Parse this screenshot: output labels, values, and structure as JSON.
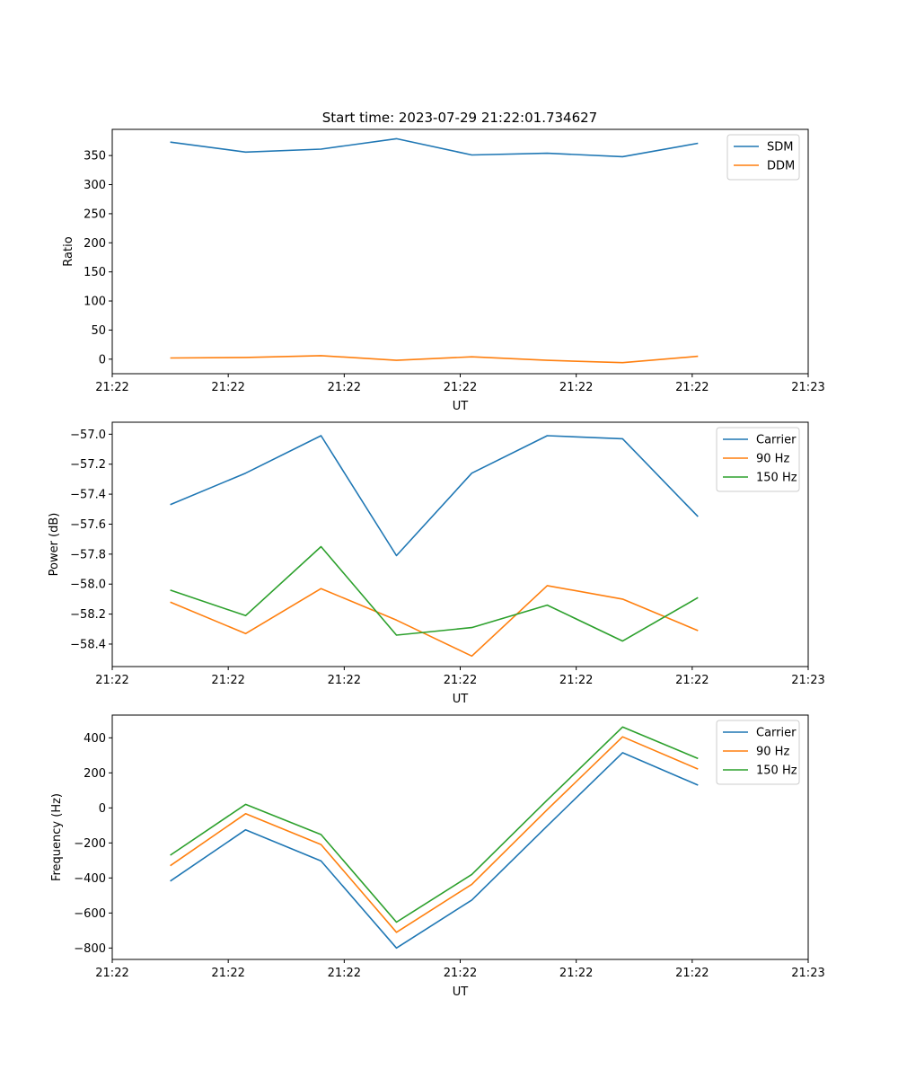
{
  "title": "Start time: 2023-07-29 21:22:01.734627",
  "colors": {
    "blue": "#1f77b4",
    "orange": "#ff7f0e",
    "green": "#2ca02c"
  },
  "chart_data": [
    {
      "type": "line",
      "xlabel": "UT",
      "ylabel": "Ratio",
      "x_tick_labels": [
        "21:22",
        "21:22",
        "21:22",
        "21:22",
        "21:22",
        "21:22",
        "21:23"
      ],
      "x": [
        0.5,
        1.15,
        1.8,
        2.45,
        3.1,
        3.75,
        4.4,
        5.05
      ],
      "xlim": [
        0,
        6
      ],
      "x_ticks": [
        0,
        1,
        2,
        3,
        4,
        5,
        6
      ],
      "ylim": [
        -25,
        395
      ],
      "y_ticks": [
        0,
        50,
        100,
        150,
        200,
        250,
        300,
        350
      ],
      "legend_position": "upper right",
      "series": [
        {
          "name": "SDM",
          "color": "#1f77b4",
          "values": [
            373,
            356,
            361,
            379,
            351,
            354,
            348,
            371
          ]
        },
        {
          "name": "DDM",
          "color": "#ff7f0e",
          "values": [
            2,
            3,
            6,
            -2,
            4,
            -2,
            -6,
            5
          ]
        }
      ]
    },
    {
      "type": "line",
      "xlabel": "UT",
      "ylabel": "Power (dB)",
      "x_tick_labels": [
        "21:22",
        "21:22",
        "21:22",
        "21:22",
        "21:22",
        "21:22",
        "21:23"
      ],
      "x": [
        0.5,
        1.15,
        1.8,
        2.45,
        3.1,
        3.75,
        4.4,
        5.05
      ],
      "xlim": [
        0,
        6
      ],
      "x_ticks": [
        0,
        1,
        2,
        3,
        4,
        5,
        6
      ],
      "ylim": [
        -58.55,
        -56.92
      ],
      "y_ticks": [
        -58.4,
        -58.2,
        -58.0,
        -57.8,
        -57.6,
        -57.4,
        -57.2,
        -57.0
      ],
      "y_tick_labels": [
        "−58.4",
        "−58.2",
        "−58.0",
        "−57.8",
        "−57.6",
        "−57.4",
        "−57.2",
        "−57.0"
      ],
      "legend_position": "upper right",
      "series": [
        {
          "name": "Carrier",
          "color": "#1f77b4",
          "values": [
            -57.47,
            -57.26,
            -57.01,
            -57.81,
            -57.26,
            -57.01,
            -57.03,
            -57.55
          ]
        },
        {
          "name": "90 Hz",
          "color": "#ff7f0e",
          "values": [
            -58.12,
            -58.33,
            -58.03,
            -58.24,
            -58.48,
            -58.01,
            -58.1,
            -58.31
          ]
        },
        {
          "name": "150 Hz",
          "color": "#2ca02c",
          "values": [
            -58.04,
            -58.21,
            -57.75,
            -58.34,
            -58.29,
            -58.14,
            -58.38,
            -58.09
          ]
        }
      ]
    },
    {
      "type": "line",
      "xlabel": "UT",
      "ylabel": "Frequency (Hz)",
      "x_tick_labels": [
        "21:22",
        "21:22",
        "21:22",
        "21:22",
        "21:22",
        "21:22",
        "21:23"
      ],
      "x": [
        0.5,
        1.15,
        1.8,
        2.45,
        3.1,
        3.75,
        4.4,
        5.05
      ],
      "xlim": [
        0,
        6
      ],
      "x_ticks": [
        0,
        1,
        2,
        3,
        4,
        5,
        6
      ],
      "ylim": [
        -865,
        530
      ],
      "y_ticks": [
        -800,
        -600,
        -400,
        -200,
        0,
        200,
        400
      ],
      "y_tick_labels": [
        "−800",
        "−600",
        "−400",
        "−200",
        "0",
        "200",
        "400"
      ],
      "legend_position": "upper right",
      "series": [
        {
          "name": "Carrier",
          "color": "#1f77b4",
          "values": [
            -418,
            -125,
            -303,
            -800,
            -526,
            -103,
            315,
            130
          ]
        },
        {
          "name": "90 Hz",
          "color": "#ff7f0e",
          "values": [
            -330,
            -33,
            -209,
            -710,
            -436,
            -10,
            406,
            222
          ]
        },
        {
          "name": "150 Hz",
          "color": "#2ca02c",
          "values": [
            -270,
            20,
            -152,
            -652,
            -380,
            45,
            462,
            282
          ]
        }
      ]
    }
  ]
}
